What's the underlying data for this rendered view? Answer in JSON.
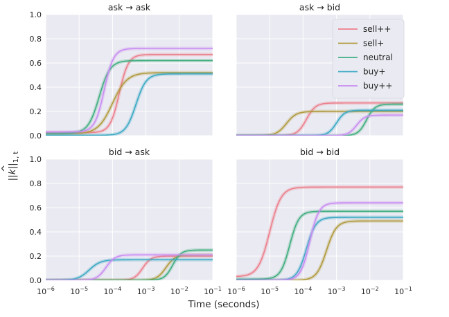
{
  "chart_data": {
    "type": "line",
    "xscale": "log",
    "xlim": [
      1e-06,
      0.1
    ],
    "ylim": [
      0,
      1.0
    ],
    "xlabel": "Time (seconds)",
    "ylabel": "||k̂||₁,t",
    "ylabel_parts": {
      "norm_open": "||",
      "k": "k",
      "hat": "^",
      "norm_close": "||",
      "sub": "1, t"
    },
    "x_tick_labels": [
      {
        "base": "10",
        "exp": "−6"
      },
      {
        "base": "10",
        "exp": "−5"
      },
      {
        "base": "10",
        "exp": "−4"
      },
      {
        "base": "10",
        "exp": "−3"
      },
      {
        "base": "10",
        "exp": "−2"
      },
      {
        "base": "10",
        "exp": "−1"
      }
    ],
    "y_tick_labels": [
      "0.0",
      "0.2",
      "0.4",
      "0.6",
      "0.8",
      "1.0"
    ],
    "legend": {
      "location": "top-right of 'ask → bid' panel",
      "entries": [
        {
          "name": "sell++",
          "color": "#ec7f8b"
        },
        {
          "name": "sell+",
          "color": "#b09a3c"
        },
        {
          "name": "neutral",
          "color": "#3fae7f"
        },
        {
          "name": "buy+",
          "color": "#3ba9c4"
        },
        {
          "name": "buy++",
          "color": "#c98df2"
        }
      ]
    },
    "panels": [
      {
        "title": "ask → ask",
        "series": [
          {
            "name": "sell++",
            "final": 0.67,
            "start": 0.025,
            "mid_log10": -3.8,
            "width_dec": 0.6
          },
          {
            "name": "sell+",
            "final": 0.52,
            "start": 0.015,
            "mid_log10": -4.0,
            "width_dec": 0.95
          },
          {
            "name": "neutral",
            "final": 0.62,
            "start": 0.02,
            "mid_log10": -4.4,
            "width_dec": 0.72
          },
          {
            "name": "buy+",
            "final": 0.51,
            "start": 0.003,
            "mid_log10": -3.3,
            "width_dec": 0.68
          },
          {
            "name": "buy++",
            "final": 0.72,
            "start": 0.03,
            "mid_log10": -4.25,
            "width_dec": 0.62
          }
        ]
      },
      {
        "title": "ask → bid",
        "series": [
          {
            "name": "sell++",
            "final": 0.27,
            "start": 0.0,
            "mid_log10": -3.9,
            "width_dec": 0.6
          },
          {
            "name": "sell+",
            "final": 0.2,
            "start": 0.0,
            "mid_log10": -4.5,
            "width_dec": 0.65
          },
          {
            "name": "neutral",
            "final": 0.26,
            "start": 0.0,
            "mid_log10": -2.1,
            "width_dec": 0.55
          },
          {
            "name": "buy+",
            "final": 0.21,
            "start": 0.0,
            "mid_log10": -3.0,
            "width_dec": 0.55
          },
          {
            "name": "buy++",
            "final": 0.17,
            "start": 0.0,
            "mid_log10": -2.4,
            "width_dec": 0.55
          }
        ]
      },
      {
        "title": "bid → ask",
        "series": [
          {
            "name": "sell++",
            "final": 0.2,
            "start": 0.0,
            "mid_log10": -3.1,
            "width_dec": 0.55
          },
          {
            "name": "sell+",
            "final": 0.21,
            "start": 0.0,
            "mid_log10": -2.4,
            "width_dec": 0.6
          },
          {
            "name": "neutral",
            "final": 0.25,
            "start": 0.0,
            "mid_log10": -2.2,
            "width_dec": 0.55
          },
          {
            "name": "buy+",
            "final": 0.17,
            "start": 0.0,
            "mid_log10": -4.7,
            "width_dec": 0.75
          },
          {
            "name": "buy++",
            "final": 0.21,
            "start": 0.0,
            "mid_log10": -4.2,
            "width_dec": 0.6
          }
        ]
      },
      {
        "title": "bid → bid",
        "series": [
          {
            "name": "sell++",
            "final": 0.77,
            "start": 0.03,
            "mid_log10": -5.0,
            "width_dec": 0.75
          },
          {
            "name": "sell+",
            "final": 0.49,
            "start": 0.0,
            "mid_log10": -3.3,
            "width_dec": 0.65
          },
          {
            "name": "neutral",
            "final": 0.57,
            "start": 0.01,
            "mid_log10": -4.4,
            "width_dec": 0.6
          },
          {
            "name": "buy+",
            "final": 0.52,
            "start": 0.0,
            "mid_log10": -3.9,
            "width_dec": 0.62
          },
          {
            "name": "buy++",
            "final": 0.64,
            "start": 0.0,
            "mid_log10": -3.8,
            "width_dec": 0.6
          }
        ]
      }
    ]
  }
}
